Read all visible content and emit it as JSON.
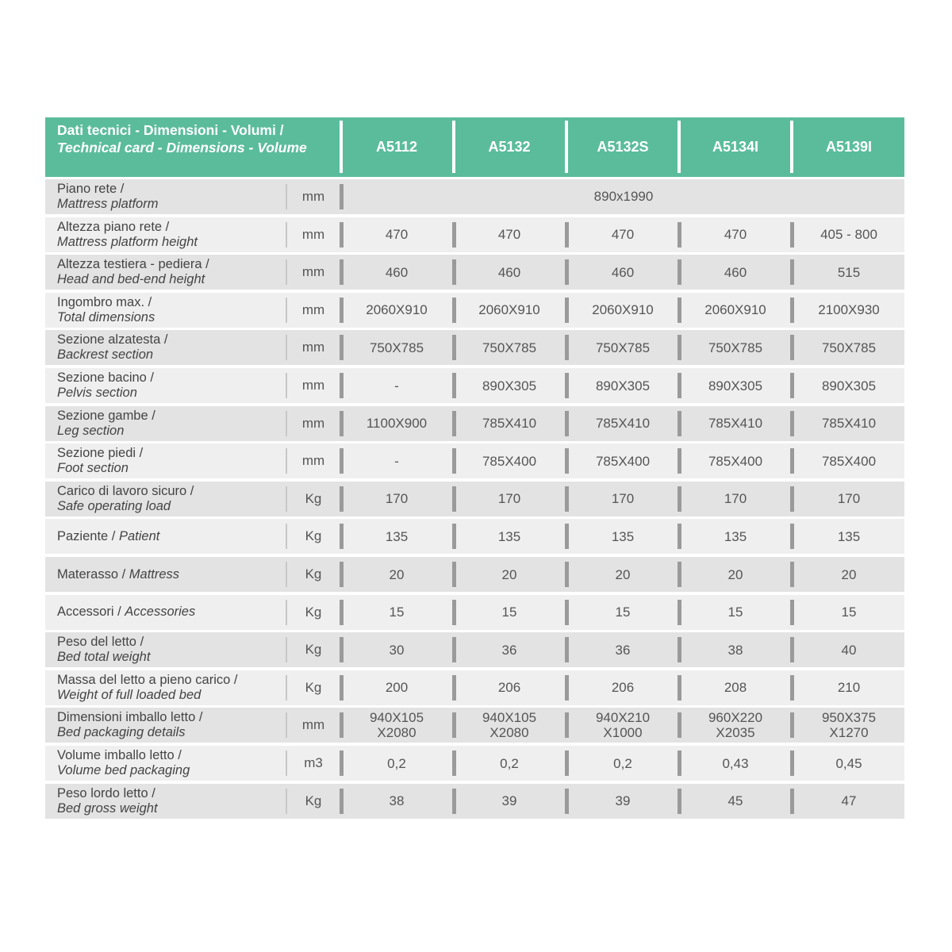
{
  "header": {
    "title_it": "Dati tecnici - Dimensioni - Volumi /",
    "title_en": "Technical card - Dimensions - Volume",
    "models": [
      "A5112",
      "A5132",
      "A5132S",
      "A5134I",
      "A5139I"
    ]
  },
  "table": {
    "rows": [
      {
        "it": "Piano rete /",
        "en": "Mattress platform",
        "unit": "mm",
        "merged": "890x1990"
      },
      {
        "it": "Altezza piano rete /",
        "en": "Mattress platform height",
        "unit": "mm",
        "values": [
          [
            "470"
          ],
          [
            "470"
          ],
          [
            "470"
          ],
          [
            "470"
          ],
          [
            "405 - 800"
          ]
        ]
      },
      {
        "it": "Altezza testiera - pediera /",
        "en": "Head and bed-end height",
        "unit": "mm",
        "values": [
          [
            "460"
          ],
          [
            "460"
          ],
          [
            "460"
          ],
          [
            "460"
          ],
          [
            "515"
          ]
        ]
      },
      {
        "it": "Ingombro max. /",
        "en": "Total dimensions",
        "unit": "mm",
        "values": [
          [
            "2060X910"
          ],
          [
            "2060X910"
          ],
          [
            "2060X910"
          ],
          [
            "2060X910"
          ],
          [
            "2100X930"
          ]
        ]
      },
      {
        "it": "Sezione alzatesta /",
        "en": "Backrest section",
        "unit": "mm",
        "values": [
          [
            "750X785"
          ],
          [
            "750X785"
          ],
          [
            "750X785"
          ],
          [
            "750X785"
          ],
          [
            "750X785"
          ]
        ]
      },
      {
        "it": "Sezione bacino /",
        "en": "Pelvis section",
        "unit": "mm",
        "values": [
          [
            "-"
          ],
          [
            "890X305"
          ],
          [
            "890X305"
          ],
          [
            "890X305"
          ],
          [
            "890X305"
          ]
        ]
      },
      {
        "it": "Sezione gambe /",
        "en": "Leg section",
        "unit": "mm",
        "values": [
          [
            "1100X900"
          ],
          [
            "785X410"
          ],
          [
            "785X410"
          ],
          [
            "785X410"
          ],
          [
            "785X410"
          ]
        ]
      },
      {
        "it": "Sezione piedi /",
        "en": "Foot section",
        "unit": "mm",
        "values": [
          [
            "-"
          ],
          [
            "785X400"
          ],
          [
            "785X400"
          ],
          [
            "785X400"
          ],
          [
            "785X400"
          ]
        ]
      },
      {
        "it": "Carico di lavoro sicuro /",
        "en": "Safe operating load",
        "unit": "Kg",
        "values": [
          [
            "170"
          ],
          [
            "170"
          ],
          [
            "170"
          ],
          [
            "170"
          ],
          [
            "170"
          ]
        ]
      },
      {
        "it": "Paziente /",
        "en": "Patient",
        "unit": "Kg",
        "values": [
          [
            "135"
          ],
          [
            "135"
          ],
          [
            "135"
          ],
          [
            "135"
          ],
          [
            "135"
          ]
        ]
      },
      {
        "it": "Materasso /",
        "en": "Mattress",
        "unit": "Kg",
        "values": [
          [
            "20"
          ],
          [
            "20"
          ],
          [
            "20"
          ],
          [
            "20"
          ],
          [
            "20"
          ]
        ]
      },
      {
        "it": "Accessori /",
        "en": "Accessories",
        "unit": "Kg",
        "values": [
          [
            "15"
          ],
          [
            "15"
          ],
          [
            "15"
          ],
          [
            "15"
          ],
          [
            "15"
          ]
        ]
      },
      {
        "it": "Peso del letto /",
        "en": "Bed total weight",
        "unit": "Kg",
        "values": [
          [
            "30"
          ],
          [
            "36"
          ],
          [
            "36"
          ],
          [
            "38"
          ],
          [
            "40"
          ]
        ]
      },
      {
        "it": "Massa del letto a pieno carico /",
        "en": "Weight of full loaded bed",
        "unit": "Kg",
        "values": [
          [
            "200"
          ],
          [
            "206"
          ],
          [
            "206"
          ],
          [
            "208"
          ],
          [
            "210"
          ]
        ]
      },
      {
        "it": "Dimensioni imballo letto /",
        "en": "Bed packaging details",
        "unit": "mm",
        "values": [
          [
            "940X105",
            "X2080"
          ],
          [
            "940X105",
            "X2080"
          ],
          [
            "940X210",
            "X1000"
          ],
          [
            "960X220",
            "X2035"
          ],
          [
            "950X375",
            "X1270"
          ]
        ]
      },
      {
        "it": "Volume imballo letto /",
        "en": "Volume bed packaging",
        "unit": "m3",
        "values": [
          [
            "0,2"
          ],
          [
            "0,2"
          ],
          [
            "0,2"
          ],
          [
            "0,43"
          ],
          [
            "0,45"
          ]
        ]
      },
      {
        "it": "Peso lordo letto /",
        "en": "Bed gross weight",
        "unit": "Kg",
        "values": [
          [
            "38"
          ],
          [
            "39"
          ],
          [
            "39"
          ],
          [
            "45"
          ],
          [
            "47"
          ]
        ]
      }
    ]
  }
}
